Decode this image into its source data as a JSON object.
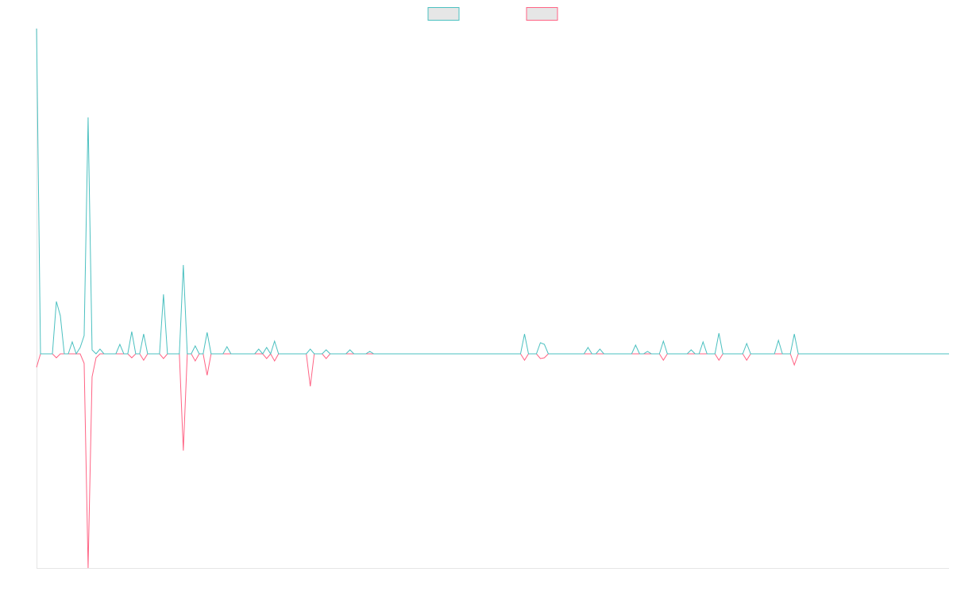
{
  "chart_data": {
    "type": "line",
    "legend_position": "top",
    "ylim": [
      -270,
      410
    ],
    "series": [
      {
        "color": "#4bc0c0",
        "values": [
          410,
          0,
          0,
          0,
          0,
          66,
          48,
          0,
          0,
          15,
          0,
          8,
          23,
          298,
          5,
          0,
          6,
          0,
          0,
          0,
          0,
          12,
          0,
          0,
          28,
          0,
          0,
          25,
          0,
          0,
          0,
          0,
          75,
          0,
          0,
          0,
          0,
          112,
          0,
          0,
          10,
          0,
          0,
          27,
          0,
          0,
          0,
          0,
          9,
          0,
          0,
          0,
          0,
          0,
          0,
          0,
          6,
          0,
          8,
          0,
          16,
          0,
          0,
          0,
          0,
          0,
          0,
          0,
          0,
          6,
          0,
          0,
          0,
          5,
          0,
          0,
          0,
          0,
          0,
          5,
          0,
          0,
          0,
          0,
          3,
          0,
          0,
          0,
          0,
          0,
          0,
          0,
          0,
          0,
          0,
          0,
          0,
          0,
          0,
          0,
          0,
          0,
          0,
          0,
          0,
          0,
          0,
          0,
          0,
          0,
          0,
          0,
          0,
          0,
          0,
          0,
          0,
          0,
          0,
          0,
          0,
          0,
          0,
          25,
          0,
          0,
          0,
          14,
          12,
          0,
          0,
          0,
          0,
          0,
          0,
          0,
          0,
          0,
          0,
          8,
          0,
          0,
          6,
          0,
          0,
          0,
          0,
          0,
          0,
          0,
          0,
          11,
          0,
          0,
          3,
          0,
          0,
          0,
          16,
          0,
          0,
          0,
          0,
          0,
          0,
          5,
          0,
          0,
          15,
          0,
          0,
          0,
          26,
          0,
          0,
          0,
          0,
          0,
          0,
          13,
          0,
          0,
          0,
          0,
          0,
          0,
          0,
          17,
          0,
          0,
          0,
          25,
          0,
          0,
          0,
          0,
          0,
          0,
          0,
          0,
          0,
          0,
          0,
          0,
          0,
          0,
          0,
          0,
          0,
          0,
          0,
          0,
          0,
          0,
          0,
          0,
          0,
          0,
          0,
          0,
          0,
          0,
          0,
          0,
          0,
          0,
          0,
          0,
          0,
          0,
          0
        ]
      },
      {
        "color": "#ff6384",
        "values": [
          -17,
          0,
          0,
          0,
          0,
          -5,
          0,
          0,
          0,
          0,
          0,
          0,
          -12,
          -270,
          -29,
          -5,
          0,
          0,
          0,
          0,
          0,
          0,
          0,
          0,
          -5,
          0,
          0,
          -8,
          0,
          0,
          0,
          0,
          -6,
          0,
          0,
          0,
          0,
          -122,
          0,
          0,
          -9,
          0,
          0,
          -27,
          0,
          0,
          0,
          0,
          0,
          0,
          0,
          0,
          0,
          0,
          0,
          0,
          0,
          0,
          -6,
          0,
          -9,
          0,
          0,
          0,
          0,
          0,
          0,
          0,
          0,
          -41,
          0,
          0,
          0,
          -6,
          0,
          0,
          0,
          0,
          0,
          0,
          0,
          0,
          0,
          0,
          0,
          0,
          0,
          0,
          0,
          0,
          0,
          0,
          0,
          0,
          0,
          0,
          0,
          0,
          0,
          0,
          0,
          0,
          0,
          0,
          0,
          0,
          0,
          0,
          0,
          0,
          0,
          0,
          0,
          0,
          0,
          0,
          0,
          0,
          0,
          0,
          0,
          0,
          0,
          -8,
          0,
          0,
          0,
          -6,
          -5,
          0,
          0,
          0,
          0,
          0,
          0,
          0,
          0,
          0,
          0,
          0,
          0,
          0,
          0,
          0,
          0,
          0,
          0,
          0,
          0,
          0,
          0,
          0,
          0,
          0,
          0,
          0,
          0,
          0,
          -8,
          0,
          0,
          0,
          0,
          0,
          0,
          0,
          0,
          0,
          0,
          0,
          0,
          0,
          -8,
          0,
          0,
          0,
          0,
          0,
          0,
          -8,
          0,
          0,
          0,
          0,
          0,
          0,
          0,
          0,
          0,
          0,
          0,
          -14,
          0,
          0,
          0,
          0,
          0,
          0,
          0,
          0,
          0,
          0,
          0,
          0,
          0,
          0,
          0,
          0,
          0,
          0,
          0,
          0,
          0,
          0,
          0,
          0,
          0,
          0,
          0,
          0,
          0,
          0,
          0,
          0,
          0,
          0,
          0,
          0,
          0,
          0,
          0
        ]
      }
    ]
  }
}
